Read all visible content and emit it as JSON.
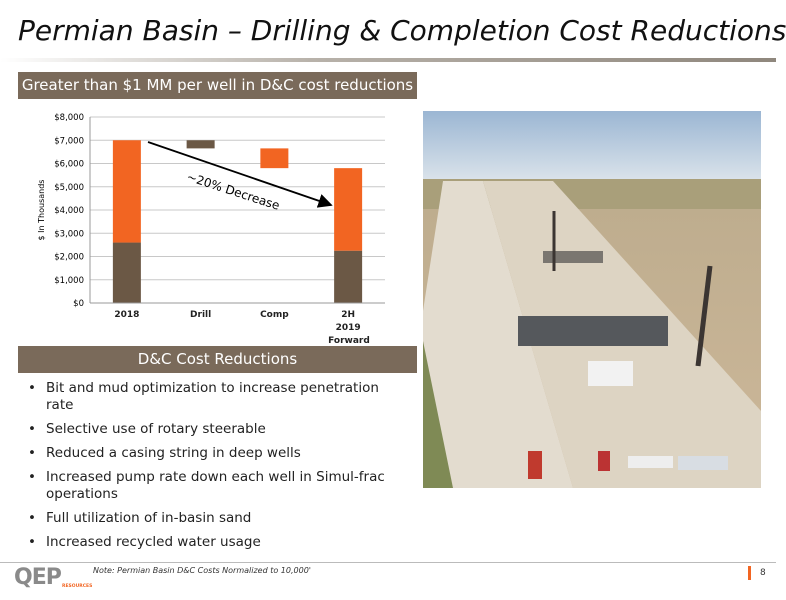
{
  "header": {
    "title": "Permian Basin – Drilling & Completion Cost Reductions"
  },
  "chart_banner": "Greater than $1 MM per well in D&C cost reductions",
  "chart_data": {
    "type": "waterfall",
    "y_label": "$ In Thousands",
    "categories": [
      "2018",
      "Drill",
      "Comp",
      "2H 2019 Forward"
    ],
    "series": [
      {
        "color": "#6b5845",
        "values": [
          2600,
          -350,
          null,
          2250
        ]
      },
      {
        "color": "#f26522",
        "values": [
          4400,
          null,
          -850,
          3550
        ]
      }
    ],
    "ylim": [
      0,
      8000
    ],
    "yticks": [
      {
        "value": 0,
        "label": "$0"
      },
      {
        "value": 1000,
        "label": "$1,000"
      },
      {
        "value": 2000,
        "label": "$2,000"
      },
      {
        "value": 3000,
        "label": "$3,000"
      },
      {
        "value": 4000,
        "label": "$4,000"
      },
      {
        "value": 5000,
        "label": "$5,000"
      },
      {
        "value": 6000,
        "label": "$6,000"
      },
      {
        "value": 7000,
        "label": "$7,000"
      },
      {
        "value": 8000,
        "label": "$8,000"
      }
    ],
    "grid": true,
    "annotation": "~20% Decrease"
  },
  "list_banner": "D&C Cost Reductions",
  "bullets": [
    "Bit and mud optimization to increase penetration rate",
    "Selective use of rotary steerable",
    "Reduced a casing string in deep wells",
    "Increased pump rate down each well in Simul-frac operations",
    "Full utilization of in-basin sand",
    "Increased recycled water usage"
  ],
  "footer": {
    "note": "Note: Permian Basin D&C Costs Normalized to 10,000'",
    "logo": "QEP",
    "logo_sub": "RESOURCES",
    "page": "8"
  }
}
